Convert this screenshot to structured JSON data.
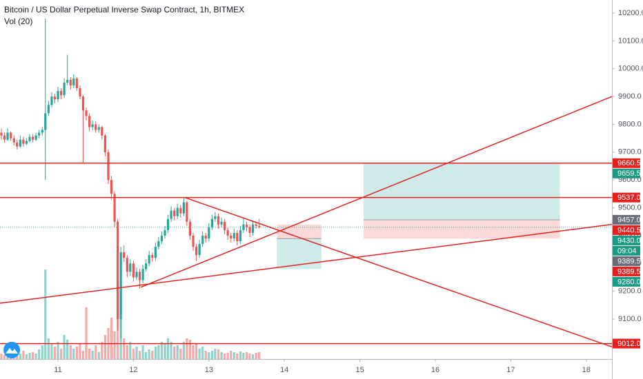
{
  "chart_data": {
    "type": "candlestick",
    "title": "Bitcoin / US Dollar Perpetual Inverse Swap Contract, 1h, BITMEX",
    "indicator": "Vol (20)",
    "up_color": "#26a69a",
    "down_color": "#ef5350",
    "x": [
      10.25,
      10.292,
      10.333,
      10.375,
      10.417,
      10.458,
      10.5,
      10.542,
      10.583,
      10.625,
      10.667,
      10.708,
      10.75,
      10.792,
      10.833,
      10.875,
      10.917,
      10.958,
      11,
      11.042,
      11.083,
      11.125,
      11.167,
      11.208,
      11.25,
      11.292,
      11.333,
      11.375,
      11.417,
      11.458,
      11.5,
      11.542,
      11.583,
      11.625,
      11.667,
      11.708,
      11.75,
      11.792,
      11.833,
      11.875,
      11.917,
      11.958,
      12,
      12.042,
      12.083,
      12.125,
      12.167,
      12.208,
      12.25,
      12.292,
      12.333,
      12.375,
      12.417,
      12.458,
      12.5,
      12.542,
      12.583,
      12.625,
      12.667,
      12.708,
      12.75,
      12.792,
      12.833,
      12.875,
      12.917,
      12.958,
      13,
      13.042,
      13.083,
      13.125,
      13.167,
      13.208,
      13.25,
      13.292,
      13.333,
      13.375,
      13.417,
      13.458,
      13.5,
      13.542,
      13.583,
      13.625,
      13.667
    ],
    "open": [
      9770,
      9760,
      9745,
      9770,
      9750,
      9735,
      9720,
      9745,
      9730,
      9740,
      9755,
      9745,
      9760,
      9770,
      9780,
      9840,
      9870,
      9900,
      9890,
      9920,
      9905,
      9950,
      9960,
      9940,
      9965,
      9930,
      9900,
      9850,
      9830,
      9790,
      9800,
      9780,
      9790,
      9760,
      9700,
      9600,
      9550,
      9450,
      9100,
      9340,
      9320,
      9270,
      9300,
      9250,
      9270,
      9240,
      9280,
      9300,
      9330,
      9320,
      9360,
      9380,
      9400,
      9420,
      9460,
      9490,
      9470,
      9500,
      9480,
      9520,
      9450,
      9400,
      9360,
      9330,
      9370,
      9400,
      9390,
      9430,
      9460,
      9470,
      9440,
      9450,
      9420,
      9400,
      9390,
      9410,
      9380,
      9420,
      9440,
      9430,
      9410,
      9440,
      9435
    ],
    "high": [
      9785,
      9770,
      9785,
      9775,
      9760,
      9745,
      9760,
      9755,
      9750,
      9765,
      9765,
      9770,
      9780,
      9790,
      10180,
      9885,
      9915,
      9910,
      9935,
      9930,
      9965,
      10050,
      9970,
      9980,
      9970,
      9940,
      9905,
      9860,
      9840,
      9815,
      9810,
      9800,
      9795,
      9765,
      9710,
      9615,
      9560,
      9460,
      9360,
      9365,
      9330,
      9315,
      9310,
      9285,
      9280,
      9295,
      9315,
      9345,
      9340,
      9375,
      9395,
      9415,
      9435,
      9475,
      9505,
      9500,
      9515,
      9510,
      9537,
      9525,
      9460,
      9410,
      9370,
      9385,
      9415,
      9410,
      9445,
      9475,
      9485,
      9480,
      9465,
      9460,
      9430,
      9410,
      9425,
      9420,
      9435,
      9465,
      9450,
      9440,
      9455,
      9450,
      9460
    ],
    "low": [
      9745,
      9735,
      9740,
      9740,
      9725,
      9710,
      9715,
      9720,
      9725,
      9735,
      9735,
      9740,
      9750,
      9760,
      9600,
      9830,
      9860,
      9875,
      9880,
      9890,
      9895,
      9940,
      9925,
      9930,
      9920,
      9890,
      9660,
      9815,
      9775,
      9780,
      9770,
      9770,
      9745,
      9685,
      9585,
      9530,
      9430,
      9060,
      9030,
      9305,
      9250,
      9255,
      9235,
      9240,
      9210,
      9230,
      9270,
      9290,
      9305,
      9310,
      9350,
      9370,
      9390,
      9410,
      9450,
      9455,
      9460,
      9465,
      9470,
      9435,
      9385,
      9345,
      9310,
      9320,
      9360,
      9375,
      9380,
      9420,
      9450,
      9425,
      9430,
      9405,
      9385,
      9375,
      9380,
      9365,
      9370,
      9410,
      9415,
      9395,
      9400,
      9425,
      9425
    ],
    "close": [
      9760,
      9745,
      9770,
      9750,
      9735,
      9720,
      9745,
      9730,
      9740,
      9755,
      9745,
      9760,
      9770,
      9780,
      9840,
      9870,
      9900,
      9890,
      9920,
      9905,
      9950,
      9960,
      9940,
      9965,
      9930,
      9900,
      9850,
      9830,
      9790,
      9800,
      9780,
      9790,
      9760,
      9700,
      9600,
      9550,
      9450,
      9100,
      9340,
      9320,
      9270,
      9300,
      9250,
      9270,
      9240,
      9280,
      9300,
      9330,
      9320,
      9360,
      9380,
      9400,
      9420,
      9460,
      9490,
      9470,
      9500,
      9480,
      9520,
      9450,
      9400,
      9360,
      9330,
      9370,
      9400,
      9390,
      9430,
      9460,
      9470,
      9440,
      9450,
      9420,
      9400,
      9390,
      9410,
      9380,
      9420,
      9440,
      9430,
      9410,
      9440,
      9435,
      9430
    ],
    "volume": [
      8,
      6,
      10,
      7,
      9,
      6,
      8,
      12,
      7,
      9,
      10,
      8,
      14,
      20,
      130,
      30,
      22,
      18,
      25,
      15,
      35,
      28,
      20,
      15,
      18,
      22,
      12,
      75,
      15,
      12,
      20,
      10,
      25,
      35,
      45,
      60,
      40,
      110,
      60,
      30,
      20,
      25,
      15,
      18,
      12,
      20,
      10,
      14,
      12,
      18,
      20,
      25,
      22,
      30,
      25,
      18,
      20,
      15,
      25,
      30,
      28,
      20,
      22,
      15,
      18,
      12,
      10,
      12,
      15,
      14,
      10,
      8,
      9,
      12,
      10,
      8,
      11,
      9,
      10,
      8,
      7,
      9,
      10
    ],
    "xlim": [
      10.232,
      18.34
    ],
    "xticks": [
      11,
      12,
      13,
      14,
      15,
      16,
      17,
      18
    ],
    "ylim": [
      8959,
      10247
    ],
    "yticks": [
      {
        "value": 9100,
        "label": "9100.0"
      },
      {
        "value": 9200,
        "label": "9200.0"
      },
      {
        "value": 9300,
        "label": "9300.0"
      },
      {
        "value": 9400,
        "label": "9400.0"
      },
      {
        "value": 9500,
        "label": "9500.0"
      },
      {
        "value": 9600,
        "label": "9600.0"
      },
      {
        "value": 9700,
        "label": "9700.0"
      },
      {
        "value": 9800,
        "label": "9800.0"
      },
      {
        "value": 9900,
        "label": "9900.0"
      },
      {
        "value": 10000,
        "label": "10000.0"
      },
      {
        "value": 10100,
        "label": "10100.0"
      },
      {
        "value": 10200,
        "label": "10200.0"
      }
    ],
    "levels": [
      9660.5,
      9537,
      9012
    ],
    "line_color": "#e5211f",
    "trendlines": [
      {
        "x": [
          10.232,
          18.34
        ],
        "y": [
          9157,
          9440.5
        ]
      },
      {
        "x": [
          12.682,
          18.34
        ],
        "y": [
          9537,
          9000
        ]
      },
      {
        "x": [
          12.1,
          18.34
        ],
        "y": [
          9215,
          9900
        ]
      }
    ],
    "positions": [
      {
        "x": [
          13.9,
          14.49
        ],
        "entry": 9389.5,
        "stop": 9440,
        "target": 9280
      },
      {
        "x": [
          15.05,
          17.65
        ],
        "entry": 9457,
        "stop": 9389.5,
        "target": 9659.5
      }
    ],
    "price_tags": [
      {
        "value": 9660.5,
        "color": "#e5211f"
      },
      {
        "value": 9659.5,
        "color": "#1a9a83"
      },
      {
        "value": {
          "value": 9537,
          "label": "9537.0"
        },
        "color": "#e5211f"
      },
      {
        "value": {
          "value": 9457,
          "label": "9457.0"
        },
        "color": "#6a6d78"
      },
      {
        "value": 9440.5,
        "color": "#e5211f"
      },
      {
        "value": {
          "value": 9430,
          "label": "9430.0"
        },
        "color": "#1a9a83"
      },
      {
        "value": 9389.5,
        "color": "#6a6d78"
      },
      {
        "value": 9389.5,
        "color": "#e5211f"
      },
      {
        "value": {
          "value": 9280,
          "label": "9280.0"
        },
        "color": "#1a9a83"
      },
      {
        "value": {
          "value": 9012,
          "label": "9012.0"
        },
        "color": "#e5211f"
      }
    ],
    "countdown": "09:04"
  }
}
